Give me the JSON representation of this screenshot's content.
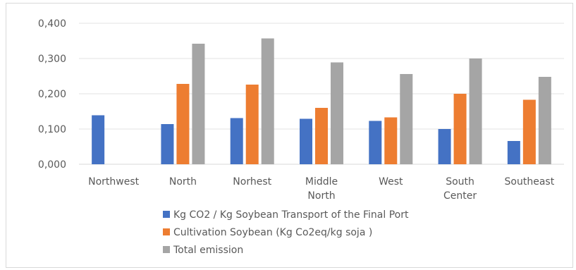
{
  "chart_data": {
    "type": "bar",
    "title": "",
    "xlabel": "",
    "ylabel": "",
    "ylim": [
      0,
      0.4
    ],
    "yticks": [
      "0,000",
      "0,100",
      "0,200",
      "0,300",
      "0,400"
    ],
    "ytick_values": [
      0,
      0.1,
      0.2,
      0.3,
      0.4
    ],
    "grid": true,
    "legend_position": "bottom",
    "categories": [
      [
        "Northwest"
      ],
      [
        "North"
      ],
      [
        "Norhest"
      ],
      [
        "Middle",
        "North"
      ],
      [
        "West"
      ],
      [
        "South",
        "Center"
      ],
      [
        "Southeast"
      ]
    ],
    "series": [
      {
        "name": "Kg CO2 / Kg Soybean Transport of the Final Port",
        "color": "#4472c4",
        "values": [
          0.139,
          0.114,
          0.131,
          0.129,
          0.123,
          0.1,
          0.066
        ]
      },
      {
        "name": "Cultivation Soybean (Kg Co2eq/kg soja )",
        "color": "#ed7d31",
        "values": [
          null,
          0.228,
          0.226,
          0.16,
          0.133,
          0.2,
          0.183
        ]
      },
      {
        "name": "Total emission",
        "color": "#a5a5a5",
        "values": [
          null,
          0.342,
          0.357,
          0.289,
          0.256,
          0.3,
          0.248
        ]
      }
    ]
  }
}
